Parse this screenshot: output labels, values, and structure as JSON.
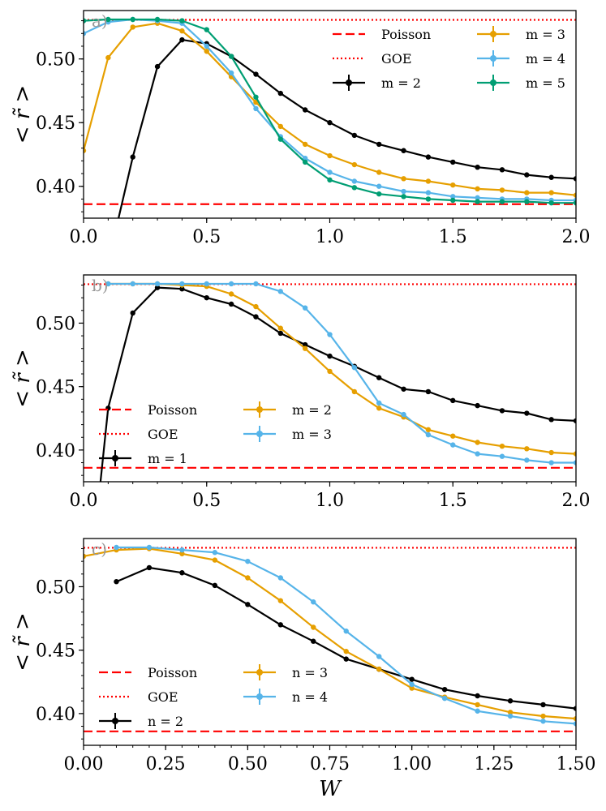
{
  "chart_data": [
    {
      "type": "line",
      "panel_label": "a)",
      "ylabel": "< r̃ >",
      "xlabel": "",
      "xlim": [
        0,
        2.0
      ],
      "ylim": [
        0.375,
        0.538
      ],
      "xticks": [
        "0.0",
        "0.5",
        "1.0",
        "1.5",
        "2.0"
      ],
      "xtick_values": [
        0,
        0.5,
        1.0,
        1.5,
        2.0
      ],
      "yticks": [
        "0.40",
        "0.45",
        "0.50"
      ],
      "ytick_values": [
        0.4,
        0.45,
        0.5
      ],
      "reference_lines": [
        {
          "name": "Poisson",
          "value": 0.386,
          "style": "dashed",
          "color": "#ff0000"
        },
        {
          "name": "GOE",
          "value": 0.5307,
          "style": "dotted",
          "color": "#ff0000"
        }
      ],
      "legend_position": "upper-right",
      "legend_columns": 2,
      "legend_order": [
        "Poisson",
        "GOE",
        "m = 2",
        "m = 3",
        "m = 4",
        "m = 5"
      ],
      "series": [
        {
          "name": "m = 2",
          "color": "#000000",
          "x": [
            0.1,
            0.2,
            0.3,
            0.4,
            0.5,
            0.6,
            0.7,
            0.8,
            0.9,
            1.0,
            1.1,
            1.2,
            1.3,
            1.4,
            1.5,
            1.6,
            1.7,
            1.8,
            1.9,
            2.0
          ],
          "y": [
            0.34,
            0.423,
            0.494,
            0.515,
            0.512,
            0.502,
            0.488,
            0.473,
            0.46,
            0.45,
            0.44,
            0.433,
            0.428,
            0.423,
            0.419,
            0.415,
            0.413,
            0.409,
            0.407,
            0.406
          ]
        },
        {
          "name": "m = 3",
          "color": "#e69f00",
          "x": [
            0.0,
            0.1,
            0.2,
            0.3,
            0.4,
            0.5,
            0.6,
            0.7,
            0.8,
            0.9,
            1.0,
            1.1,
            1.2,
            1.3,
            1.4,
            1.5,
            1.6,
            1.7,
            1.8,
            1.9,
            2.0
          ],
          "y": [
            0.428,
            0.501,
            0.525,
            0.528,
            0.522,
            0.506,
            0.486,
            0.466,
            0.447,
            0.433,
            0.424,
            0.417,
            0.411,
            0.406,
            0.404,
            0.401,
            0.398,
            0.397,
            0.395,
            0.395,
            0.393
          ]
        },
        {
          "name": "m = 4",
          "color": "#56b4e9",
          "x": [
            0.0,
            0.1,
            0.2,
            0.3,
            0.4,
            0.5,
            0.6,
            0.7,
            0.8,
            0.9,
            1.0,
            1.1,
            1.2,
            1.3,
            1.4,
            1.5,
            1.6,
            1.7,
            1.8,
            1.9,
            2.0
          ],
          "y": [
            0.52,
            0.529,
            0.531,
            0.53,
            0.528,
            0.51,
            0.489,
            0.461,
            0.439,
            0.422,
            0.411,
            0.404,
            0.4,
            0.396,
            0.395,
            0.392,
            0.391,
            0.39,
            0.39,
            0.389,
            0.389
          ]
        },
        {
          "name": "m = 5",
          "color": "#009e73",
          "x": [
            0.0,
            0.1,
            0.2,
            0.3,
            0.4,
            0.5,
            0.6,
            0.7,
            0.8,
            0.9,
            1.0,
            1.1,
            1.2,
            1.3,
            1.4,
            1.5,
            1.6,
            1.7,
            1.8,
            1.9,
            2.0
          ],
          "y": [
            0.53,
            0.531,
            0.531,
            0.531,
            0.53,
            0.523,
            0.502,
            0.47,
            0.437,
            0.419,
            0.405,
            0.399,
            0.394,
            0.392,
            0.39,
            0.389,
            0.388,
            0.388,
            0.388,
            0.387,
            0.387
          ]
        }
      ]
    },
    {
      "type": "line",
      "panel_label": "b)",
      "ylabel": "< r̃ >",
      "xlabel": "",
      "xlim": [
        0,
        2.0
      ],
      "ylim": [
        0.375,
        0.538
      ],
      "xticks": [
        "0.0",
        "0.5",
        "1.0",
        "1.5",
        "2.0"
      ],
      "xtick_values": [
        0,
        0.5,
        1.0,
        1.5,
        2.0
      ],
      "yticks": [
        "0.40",
        "0.45",
        "0.50"
      ],
      "ytick_values": [
        0.4,
        0.45,
        0.5
      ],
      "reference_lines": [
        {
          "name": "Poisson",
          "value": 0.386,
          "style": "dashed",
          "color": "#ff0000"
        },
        {
          "name": "GOE",
          "value": 0.5307,
          "style": "dotted",
          "color": "#ff0000"
        }
      ],
      "legend_position": "lower-left",
      "legend_columns": 2,
      "legend_order": [
        "Poisson",
        "GOE",
        "m = 1",
        "m = 2",
        "m = 3"
      ],
      "series": [
        {
          "name": "m = 1",
          "color": "#000000",
          "x": [
            0.05,
            0.1,
            0.2,
            0.3,
            0.4,
            0.5,
            0.6,
            0.7,
            0.8,
            0.9,
            1.0,
            1.1,
            1.2,
            1.3,
            1.4,
            1.5,
            1.6,
            1.7,
            1.8,
            1.9,
            2.0
          ],
          "y": [
            0.34,
            0.433,
            0.508,
            0.528,
            0.527,
            0.52,
            0.515,
            0.505,
            0.492,
            0.483,
            0.474,
            0.466,
            0.457,
            0.448,
            0.446,
            0.439,
            0.435,
            0.431,
            0.429,
            0.424,
            0.423
          ]
        },
        {
          "name": "m = 2",
          "color": "#e69f00",
          "x": [
            0.1,
            0.2,
            0.3,
            0.4,
            0.5,
            0.6,
            0.7,
            0.8,
            0.9,
            1.0,
            1.1,
            1.2,
            1.3,
            1.4,
            1.5,
            1.6,
            1.7,
            1.8,
            1.9,
            2.0
          ],
          "y": [
            0.531,
            0.531,
            0.531,
            0.53,
            0.529,
            0.523,
            0.513,
            0.496,
            0.48,
            0.462,
            0.446,
            0.433,
            0.426,
            0.416,
            0.411,
            0.406,
            0.403,
            0.401,
            0.398,
            0.397
          ]
        },
        {
          "name": "m = 3",
          "color": "#56b4e9",
          "x": [
            0.1,
            0.2,
            0.3,
            0.4,
            0.5,
            0.6,
            0.7,
            0.8,
            0.9,
            1.0,
            1.1,
            1.2,
            1.3,
            1.4,
            1.5,
            1.6,
            1.7,
            1.8,
            1.9,
            2.0
          ],
          "y": [
            0.531,
            0.531,
            0.531,
            0.531,
            0.531,
            0.531,
            0.531,
            0.525,
            0.512,
            0.491,
            0.465,
            0.437,
            0.428,
            0.412,
            0.404,
            0.397,
            0.395,
            0.392,
            0.39,
            0.39
          ]
        }
      ]
    },
    {
      "type": "line",
      "panel_label": "c)",
      "ylabel": "< r̃ >",
      "xlabel": "W",
      "xlim": [
        0,
        1.5
      ],
      "ylim": [
        0.375,
        0.538
      ],
      "xticks": [
        "0.00",
        "0.25",
        "0.50",
        "0.75",
        "1.00",
        "1.25",
        "1.50"
      ],
      "xtick_values": [
        0,
        0.25,
        0.5,
        0.75,
        1.0,
        1.25,
        1.5
      ],
      "yticks": [
        "0.40",
        "0.45",
        "0.50"
      ],
      "ytick_values": [
        0.4,
        0.45,
        0.5
      ],
      "reference_lines": [
        {
          "name": "Poisson",
          "value": 0.386,
          "style": "dashed",
          "color": "#ff0000"
        },
        {
          "name": "GOE",
          "value": 0.5307,
          "style": "dotted",
          "color": "#ff0000"
        }
      ],
      "legend_position": "lower-left",
      "legend_columns": 2,
      "legend_order": [
        "Poisson",
        "GOE",
        "n = 2",
        "n = 3",
        "n = 4"
      ],
      "series": [
        {
          "name": "n = 2",
          "color": "#000000",
          "x": [
            0.1,
            0.2,
            0.3,
            0.4,
            0.5,
            0.6,
            0.7,
            0.8,
            0.9,
            1.0,
            1.1,
            1.2,
            1.3,
            1.4,
            1.5
          ],
          "y": [
            0.504,
            0.515,
            0.511,
            0.501,
            0.486,
            0.47,
            0.457,
            0.443,
            0.435,
            0.427,
            0.419,
            0.414,
            0.41,
            0.407,
            0.404
          ]
        },
        {
          "name": "n = 3",
          "color": "#e69f00",
          "x": [
            0.0,
            0.1,
            0.2,
            0.3,
            0.4,
            0.5,
            0.6,
            0.7,
            0.8,
            0.9,
            1.0,
            1.1,
            1.2,
            1.3,
            1.4,
            1.5
          ],
          "y": [
            0.524,
            0.529,
            0.53,
            0.526,
            0.521,
            0.507,
            0.489,
            0.468,
            0.449,
            0.435,
            0.42,
            0.413,
            0.407,
            0.401,
            0.398,
            0.396
          ]
        },
        {
          "name": "n = 4",
          "color": "#56b4e9",
          "x": [
            0.1,
            0.2,
            0.3,
            0.4,
            0.5,
            0.6,
            0.7,
            0.8,
            0.9,
            1.0,
            1.1,
            1.2,
            1.3,
            1.4,
            1.5
          ],
          "y": [
            0.531,
            0.531,
            0.529,
            0.527,
            0.52,
            0.507,
            0.488,
            0.465,
            0.445,
            0.423,
            0.412,
            0.402,
            0.398,
            0.394,
            0.392
          ]
        }
      ]
    }
  ]
}
